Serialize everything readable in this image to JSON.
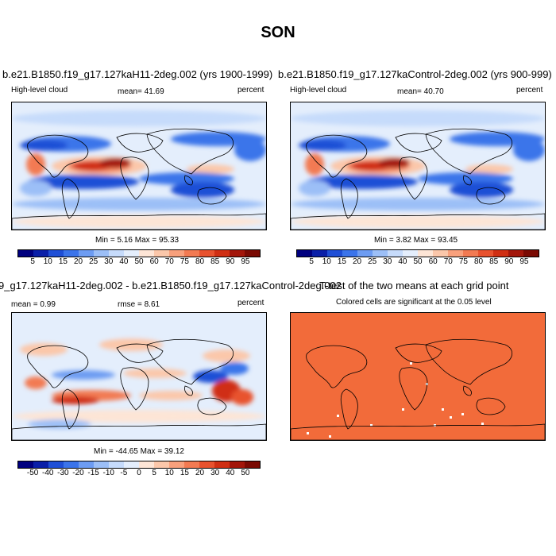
{
  "figure": {
    "title": "SON"
  },
  "panels": [
    {
      "id": "p1",
      "title": "b.e21.B1850.f19_g17.127kaH11-2deg.002 (yrs 1900-1999)",
      "left_label": "High-level cloud",
      "center_label": "mean=  41.69",
      "right_label": "percent",
      "minmax": "Min =  5.16 Max = 95.33",
      "colorbar": {
        "ticks": [
          "5",
          "10",
          "15",
          "20",
          "25",
          "30",
          "40",
          "50",
          "60",
          "70",
          "75",
          "80",
          "85",
          "90",
          "95"
        ],
        "colors": [
          "#00007f",
          "#0a1fa8",
          "#1f4fd6",
          "#3b74ea",
          "#6d9cf2",
          "#9cbff7",
          "#c6dbfb",
          "#e4eefc",
          "#fde5d6",
          "#fbc7aa",
          "#f8a07c",
          "#f27a52",
          "#e8522e",
          "#d02f13",
          "#a3160a",
          "#7a0a03"
        ]
      }
    },
    {
      "id": "p2",
      "title": "b.e21.B1850.f19_g17.127kaControl-2deg.002 (yrs 900-999)",
      "left_label": "High-level cloud",
      "center_label": "mean=  40.70",
      "right_label": "percent",
      "minmax": "Min =  3.82 Max = 93.45",
      "colorbar": {
        "ticks": [
          "5",
          "10",
          "15",
          "20",
          "25",
          "30",
          "40",
          "50",
          "60",
          "70",
          "75",
          "80",
          "85",
          "90",
          "95"
        ],
        "colors": [
          "#00007f",
          "#0a1fa8",
          "#1f4fd6",
          "#3b74ea",
          "#6d9cf2",
          "#9cbff7",
          "#c6dbfb",
          "#e4eefc",
          "#fde5d6",
          "#fbc7aa",
          "#f8a07c",
          "#f27a52",
          "#e8522e",
          "#d02f13",
          "#a3160a",
          "#7a0a03"
        ]
      }
    },
    {
      "id": "p3",
      "title": "9_g17.127kaH11-2deg.002 - b.e21.B1850.f19_g17.127kaControl-2deg.002",
      "left_label": "mean =  0.99",
      "center_label": "rmse =  8.61",
      "right_label": "percent",
      "minmax": "Min = -44.65 Max = 39.12",
      "colorbar": {
        "ticks": [
          "-50",
          "-40",
          "-30",
          "-20",
          "-15",
          "-10",
          "-5",
          "0",
          "5",
          "10",
          "15",
          "20",
          "30",
          "40",
          "50"
        ],
        "colors": [
          "#00007f",
          "#0a1fa8",
          "#1f4fd6",
          "#3b74ea",
          "#6d9cf2",
          "#9cbff7",
          "#c6dbfb",
          "#e4eefc",
          "#fde5d6",
          "#fbc7aa",
          "#f8a07c",
          "#f27a52",
          "#e8522e",
          "#d02f13",
          "#a3160a",
          "#7a0a03"
        ]
      }
    },
    {
      "id": "p4",
      "title": "T-test of the two means at each grid point",
      "subtitle": "Colored cells are significant at the 0.05 level",
      "fill": "#f26b3a"
    }
  ]
}
